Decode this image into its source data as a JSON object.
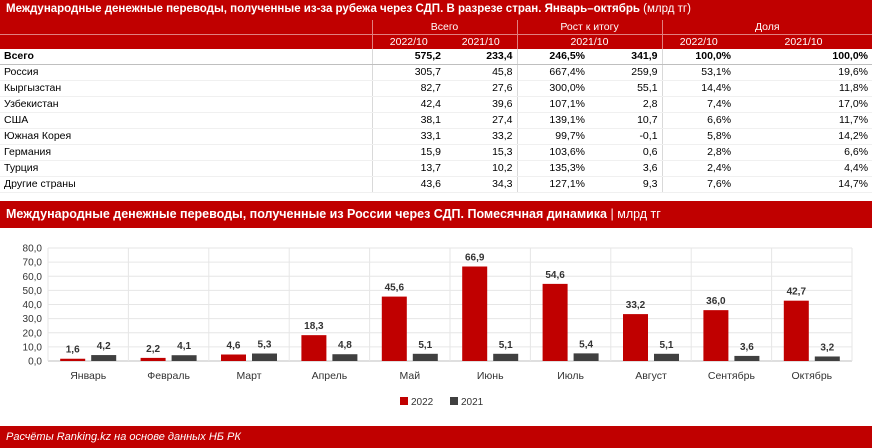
{
  "table": {
    "title": "Международные денежные переводы, полученные из-за рубежа через СДП. В разрезе стран. Январь–октябрь",
    "unit": "(млрд тг)",
    "group_headers": [
      "Всего",
      "Рост к итогу",
      "Доля"
    ],
    "sub_headers": [
      "2022/10",
      "2021/10",
      "2021/10",
      "2022/10",
      "2021/10"
    ],
    "rows": [
      {
        "country": "Всего",
        "v2022": "575,2",
        "v2021": "233,4",
        "growth_pct": "246,5%",
        "growth_abs": "341,9",
        "share2022": "100,0%",
        "share2021": "100,0%"
      },
      {
        "country": "Россия",
        "v2022": "305,7",
        "v2021": "45,8",
        "growth_pct": "667,4%",
        "growth_abs": "259,9",
        "share2022": "53,1%",
        "share2021": "19,6%"
      },
      {
        "country": "Кыргызстан",
        "v2022": "82,7",
        "v2021": "27,6",
        "growth_pct": "300,0%",
        "growth_abs": "55,1",
        "share2022": "14,4%",
        "share2021": "11,8%"
      },
      {
        "country": "Узбекистан",
        "v2022": "42,4",
        "v2021": "39,6",
        "growth_pct": "107,1%",
        "growth_abs": "2,8",
        "share2022": "7,4%",
        "share2021": "17,0%"
      },
      {
        "country": "США",
        "v2022": "38,1",
        "v2021": "27,4",
        "growth_pct": "139,1%",
        "growth_abs": "10,7",
        "share2022": "6,6%",
        "share2021": "11,7%"
      },
      {
        "country": "Южная Корея",
        "v2022": "33,1",
        "v2021": "33,2",
        "growth_pct": "99,7%",
        "growth_abs": "-0,1",
        "share2022": "5,8%",
        "share2021": "14,2%"
      },
      {
        "country": "Германия",
        "v2022": "15,9",
        "v2021": "15,3",
        "growth_pct": "103,6%",
        "growth_abs": "0,6",
        "share2022": "2,8%",
        "share2021": "6,6%"
      },
      {
        "country": "Турция",
        "v2022": "13,7",
        "v2021": "10,2",
        "growth_pct": "135,3%",
        "growth_abs": "3,6",
        "share2022": "2,4%",
        "share2021": "4,4%"
      },
      {
        "country": "Другие страны",
        "v2022": "43,6",
        "v2021": "34,3",
        "growth_pct": "127,1%",
        "growth_abs": "9,3",
        "share2022": "7,6%",
        "share2021": "14,7%"
      }
    ]
  },
  "chart_header": {
    "title": "Международные денежные переводы, полученные из России через СДП. Помесячная динамика",
    "unit": "млрд тг"
  },
  "chart_data": {
    "type": "bar",
    "categories": [
      "Январь",
      "Февраль",
      "Март",
      "Апрель",
      "Май",
      "Июнь",
      "Июль",
      "Август",
      "Сентябрь",
      "Октябрь"
    ],
    "series": [
      {
        "name": "2022",
        "color": "#c00000",
        "values": [
          1.6,
          2.2,
          4.6,
          18.3,
          45.6,
          66.9,
          54.6,
          33.2,
          36.0,
          42.7
        ]
      },
      {
        "name": "2021",
        "color": "#404040",
        "values": [
          4.2,
          4.1,
          5.3,
          4.8,
          5.1,
          5.1,
          5.4,
          5.1,
          3.6,
          3.2
        ]
      }
    ],
    "ylim": [
      0,
      80
    ],
    "yticks": [
      "0,0",
      "10,0",
      "20,0",
      "30,0",
      "40,0",
      "50,0",
      "60,0",
      "70,0",
      "80,0"
    ],
    "legend_position": "bottom",
    "grid": true
  },
  "footer": "Расчёты Ranking.kz на основе данных НБ РК"
}
